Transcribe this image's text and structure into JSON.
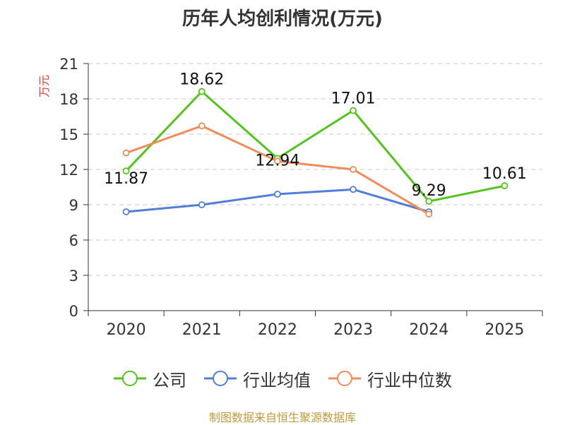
{
  "chart_data": {
    "type": "line",
    "title": "历年人均创利情况(万元)",
    "xlabel": "",
    "ylabel": "万元",
    "categories": [
      "2020",
      "2021",
      "2022",
      "2023",
      "2024",
      "2025"
    ],
    "ylim": [
      0,
      21
    ],
    "yticks": [
      0,
      3,
      6,
      9,
      12,
      15,
      18,
      21
    ],
    "grid": true,
    "legend_position": "bottom-center",
    "series": [
      {
        "name": "公司",
        "color": "#52c41a",
        "values": [
          11.87,
          18.62,
          12.94,
          17.01,
          9.29,
          10.61
        ],
        "show_labels": true
      },
      {
        "name": "行业均值",
        "color": "#4f7fd8",
        "values": [
          8.4,
          9.0,
          9.9,
          10.3,
          8.4,
          null
        ],
        "show_labels": false
      },
      {
        "name": "行业中位数",
        "color": "#f08c5a",
        "values": [
          13.4,
          15.7,
          12.7,
          12.0,
          8.2,
          null
        ],
        "show_labels": false
      }
    ]
  },
  "footer": "制图数据来自恒生聚源数据库"
}
